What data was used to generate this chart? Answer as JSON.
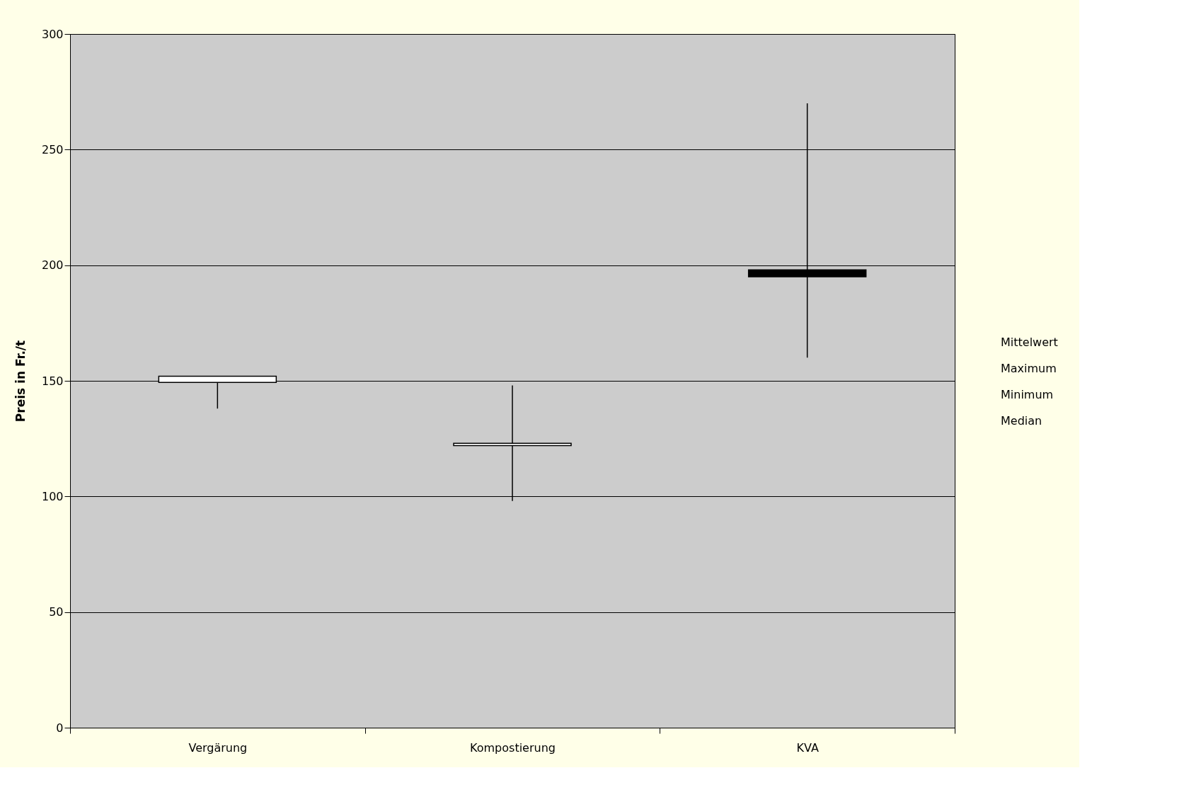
{
  "chart_data": {
    "type": "candlestick",
    "ylabel": "Preis in Fr./t",
    "categories": [
      "Vergärung",
      "Kompostierung",
      "KVA"
    ],
    "ohlc": [
      [
        149.3,
        152,
        138,
        152
      ],
      [
        122,
        148,
        98,
        123
      ],
      [
        198,
        270,
        160,
        195
      ]
    ],
    "colors": [
      "#ffffff",
      "#ffffff",
      "#000000"
    ],
    "ylim": [
      0,
      300
    ],
    "yticks": [
      0,
      50,
      100,
      150,
      200,
      250,
      300
    ],
    "grid": "y",
    "annotations": [
      "Mittelwert",
      "Maximum",
      "Minimum",
      "Median"
    ]
  }
}
